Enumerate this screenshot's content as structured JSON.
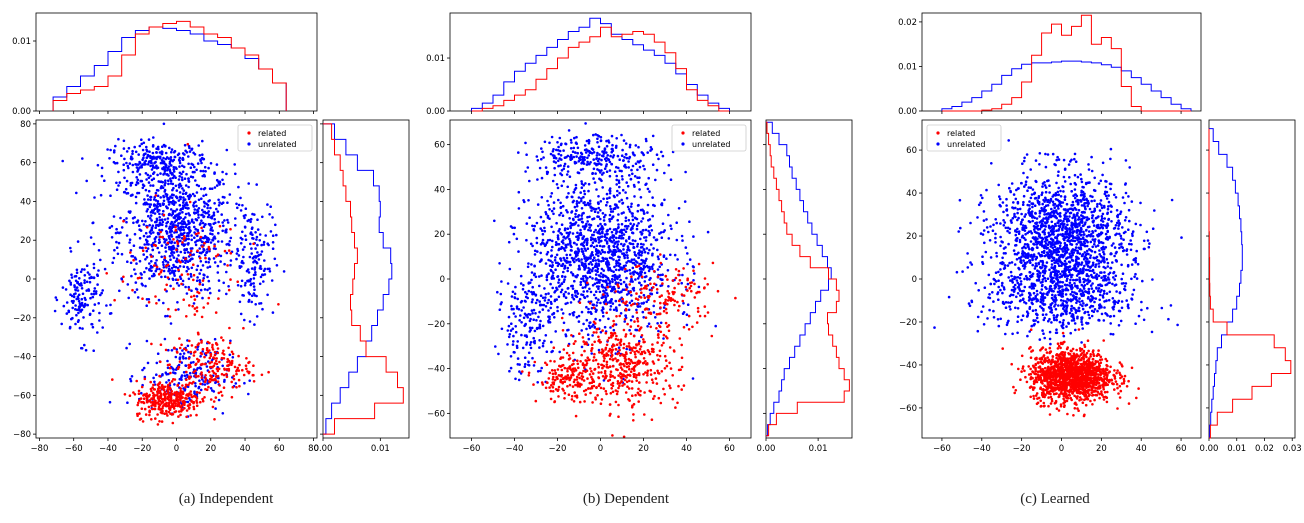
{
  "colors": {
    "related": "#ff0000",
    "unrelated": "#0000ff",
    "axis": "#000000"
  },
  "legend_labels": {
    "related": "related",
    "unrelated": "unrelated"
  },
  "captions": [
    "(a)  Independent",
    "(b)  Dependent",
    "(c)  Learned"
  ],
  "chart_data": [
    {
      "type": "scatter",
      "title": "",
      "caption": "(a)  Independent",
      "legend": "top-right",
      "main": {
        "xlim": [
          -82,
          82
        ],
        "ylim": [
          -82,
          82
        ],
        "xticks": [
          -80,
          -60,
          -40,
          -20,
          0,
          20,
          40,
          60,
          80
        ],
        "yticks": [
          -80,
          -60,
          -40,
          -20,
          0,
          20,
          40,
          60,
          80
        ],
        "tick_labels_x": [
          "−80",
          "−60",
          "−40",
          "−20",
          "0",
          "20",
          "40",
          "60",
          "80"
        ],
        "tick_labels_y": [
          "−80",
          "−60",
          "−40",
          "−20",
          "0",
          "20",
          "40",
          "60",
          "80"
        ],
        "series": [
          {
            "name": "related",
            "clusters": [
              {
                "cx": -5,
                "cy": -62,
                "sx": 16,
                "sy": 8,
                "n": 320
              },
              {
                "cx": 20,
                "cy": -45,
                "sx": 20,
                "sy": 12,
                "n": 200
              },
              {
                "cx": 0,
                "cy": 5,
                "sx": 30,
                "sy": 30,
                "n": 120
              }
            ]
          },
          {
            "name": "unrelated",
            "clusters": [
              {
                "cx": 0,
                "cy": 25,
                "sx": 28,
                "sy": 28,
                "n": 900
              },
              {
                "cx": -10,
                "cy": 60,
                "sx": 25,
                "sy": 9,
                "n": 250
              },
              {
                "cx": -55,
                "cy": -10,
                "sx": 10,
                "sy": 18,
                "n": 150
              },
              {
                "cx": 45,
                "cy": 10,
                "sx": 10,
                "sy": 25,
                "n": 150
              },
              {
                "cx": 5,
                "cy": -50,
                "sx": 22,
                "sy": 15,
                "n": 200
              }
            ]
          }
        ]
      },
      "top_hist": {
        "ylim": [
          0,
          0.014
        ],
        "yticks": [
          0,
          0.01
        ],
        "tick_labels_y": [
          "0.00",
          "0.01"
        ],
        "x_edges": [
          -72,
          -64,
          -56,
          -48,
          -40,
          -32,
          -24,
          -16,
          -8,
          0,
          8,
          16,
          24,
          32,
          40,
          48,
          56,
          64
        ],
        "related": [
          0.0015,
          0.0025,
          0.003,
          0.0035,
          0.005,
          0.008,
          0.011,
          0.012,
          0.0125,
          0.0128,
          0.012,
          0.011,
          0.0105,
          0.009,
          0.008,
          0.006,
          0.004
        ],
        "unrelated": [
          0.002,
          0.0035,
          0.005,
          0.0065,
          0.0085,
          0.0105,
          0.0115,
          0.012,
          0.0118,
          0.0115,
          0.011,
          0.01,
          0.0095,
          0.009,
          0.0075,
          0.006,
          0.004
        ]
      },
      "right_hist": {
        "xlim": [
          0,
          0.015
        ],
        "xticks": [
          0,
          0.01
        ],
        "tick_labels_x": [
          "0.00",
          "0.01"
        ],
        "y_edges": [
          -80,
          -72,
          -64,
          -56,
          -48,
          -40,
          -32,
          -24,
          -16,
          -8,
          0,
          8,
          16,
          24,
          32,
          40,
          48,
          56,
          64,
          72,
          80
        ],
        "related": [
          0.002,
          0.009,
          0.014,
          0.013,
          0.011,
          0.0075,
          0.0065,
          0.005,
          0.0048,
          0.0052,
          0.0055,
          0.006,
          0.0055,
          0.005,
          0.0048,
          0.004,
          0.0035,
          0.003,
          0.002,
          0.0015
        ],
        "unrelated": [
          0.0005,
          0.0015,
          0.003,
          0.0045,
          0.006,
          0.0075,
          0.0085,
          0.0095,
          0.0105,
          0.0115,
          0.012,
          0.0118,
          0.0105,
          0.0098,
          0.01,
          0.0098,
          0.0088,
          0.006,
          0.004,
          0.002
        ]
      }
    },
    {
      "type": "scatter",
      "title": "",
      "caption": "(b)  Dependent",
      "legend": "top-right",
      "main": {
        "xlim": [
          -70,
          70
        ],
        "ylim": [
          -71,
          71
        ],
        "xticks": [
          -60,
          -40,
          -20,
          0,
          20,
          40,
          60
        ],
        "yticks": [
          -60,
          -40,
          -20,
          0,
          20,
          40,
          60
        ],
        "tick_labels_x": [
          "−60",
          "−40",
          "−20",
          "0",
          "20",
          "40",
          "60"
        ],
        "tick_labels_y": [
          "−60",
          "−40",
          "−20",
          "0",
          "20",
          "40",
          "60"
        ],
        "series": [
          {
            "name": "related",
            "clusters": [
              {
                "cx": 10,
                "cy": -38,
                "sx": 22,
                "sy": 16,
                "n": 450
              },
              {
                "cx": 30,
                "cy": -8,
                "sx": 20,
                "sy": 12,
                "n": 150
              },
              {
                "cx": -15,
                "cy": -45,
                "sx": 12,
                "sy": 8,
                "n": 150
              }
            ]
          },
          {
            "name": "unrelated",
            "clusters": [
              {
                "cx": 0,
                "cy": 10,
                "sx": 28,
                "sy": 30,
                "n": 1400
              },
              {
                "cx": -2,
                "cy": 55,
                "sx": 25,
                "sy": 8,
                "n": 250
              },
              {
                "cx": -35,
                "cy": -20,
                "sx": 10,
                "sy": 20,
                "n": 150
              }
            ]
          }
        ]
      },
      "top_hist": {
        "ylim": [
          0,
          0.0185
        ],
        "yticks": [
          0,
          0.01
        ],
        "tick_labels_y": [
          "0.00",
          "0.01"
        ],
        "x_edges": [
          -60,
          -55,
          -50,
          -45,
          -40,
          -35,
          -30,
          -25,
          -20,
          -15,
          -10,
          -5,
          0,
          5,
          10,
          15,
          20,
          25,
          30,
          35,
          40,
          45,
          50,
          55,
          60
        ],
        "related": [
          0.0,
          0.0005,
          0.001,
          0.002,
          0.003,
          0.004,
          0.006,
          0.008,
          0.01,
          0.012,
          0.013,
          0.014,
          0.0158,
          0.014,
          0.0145,
          0.015,
          0.0145,
          0.013,
          0.011,
          0.008,
          0.004,
          0.002,
          0.001,
          0.0
        ],
        "unrelated": [
          0.0005,
          0.0015,
          0.003,
          0.0055,
          0.0075,
          0.009,
          0.0105,
          0.012,
          0.0135,
          0.015,
          0.0158,
          0.0175,
          0.0165,
          0.0145,
          0.0135,
          0.0125,
          0.0115,
          0.0105,
          0.009,
          0.007,
          0.005,
          0.003,
          0.0015,
          0.0005
        ]
      },
      "right_hist": {
        "xlim": [
          0,
          0.0165
        ],
        "xticks": [
          0,
          0.01
        ],
        "tick_labels_x": [
          "0.00",
          "0.01"
        ],
        "y_edges": [
          -70,
          -65,
          -60,
          -55,
          -50,
          -45,
          -40,
          -35,
          -30,
          -25,
          -20,
          -15,
          -10,
          -5,
          0,
          5,
          10,
          15,
          20,
          25,
          30,
          35,
          40,
          45,
          50,
          55,
          60,
          65,
          70
        ],
        "related": [
          0.0005,
          0.002,
          0.006,
          0.015,
          0.016,
          0.015,
          0.014,
          0.0135,
          0.0128,
          0.012,
          0.0118,
          0.0135,
          0.014,
          0.0135,
          0.012,
          0.0085,
          0.0065,
          0.005,
          0.004,
          0.0035,
          0.003,
          0.0025,
          0.002,
          0.0015,
          0.001,
          0.0008,
          0.0005,
          0.0002
        ],
        "unrelated": [
          0.0003,
          0.0008,
          0.0015,
          0.0025,
          0.003,
          0.0035,
          0.0045,
          0.0055,
          0.0065,
          0.0075,
          0.0085,
          0.0095,
          0.0105,
          0.012,
          0.0125,
          0.0118,
          0.0108,
          0.0098,
          0.0088,
          0.008,
          0.0072,
          0.0065,
          0.0058,
          0.005,
          0.0045,
          0.004,
          0.0025,
          0.0012
        ]
      }
    },
    {
      "type": "scatter",
      "title": "",
      "caption": "(c)  Learned",
      "legend": "top-left",
      "main": {
        "xlim": [
          -70,
          70
        ],
        "ylim": [
          -74,
          74
        ],
        "xticks": [
          -60,
          -40,
          -20,
          0,
          20,
          40,
          60
        ],
        "yticks": [
          -60,
          -40,
          -20,
          0,
          20,
          40,
          60
        ],
        "tick_labels_x": [
          "−60",
          "−40",
          "−20",
          "0",
          "20",
          "40",
          "60"
        ],
        "tick_labels_y": [
          "−60",
          "−40",
          "−20",
          "0",
          "20",
          "40",
          "60"
        ],
        "series": [
          {
            "name": "related",
            "clusters": [
              {
                "cx": 5,
                "cy": -45,
                "sx": 17,
                "sy": 10,
                "n": 1400
              }
            ]
          },
          {
            "name": "unrelated",
            "clusters": [
              {
                "cx": 0,
                "cy": 18,
                "sx": 28,
                "sy": 26,
                "n": 1600
              },
              {
                "cx": 0,
                "cy": -10,
                "sx": 32,
                "sy": 14,
                "n": 450
              }
            ]
          }
        ]
      },
      "top_hist": {
        "ylim": [
          0,
          0.022
        ],
        "yticks": [
          0,
          0.01,
          0.02
        ],
        "tick_labels_y": [
          "0.00",
          "0.01",
          "0.02"
        ],
        "x_edges": [
          -60,
          -55,
          -50,
          -45,
          -40,
          -35,
          -30,
          -25,
          -20,
          -15,
          -10,
          -5,
          0,
          5,
          10,
          15,
          20,
          25,
          30,
          35,
          40,
          45,
          50,
          55,
          60,
          65
        ],
        "related": [
          0.0,
          0.0,
          0.0,
          0.0,
          0.0002,
          0.0005,
          0.0015,
          0.003,
          0.0065,
          0.0125,
          0.0175,
          0.0195,
          0.017,
          0.019,
          0.0215,
          0.015,
          0.0165,
          0.014,
          0.0055,
          0.001,
          0.0,
          0.0,
          0.0,
          0.0,
          0.0
        ],
        "unrelated": [
          0.0005,
          0.001,
          0.002,
          0.003,
          0.0045,
          0.006,
          0.008,
          0.0095,
          0.0105,
          0.0108,
          0.0108,
          0.011,
          0.0112,
          0.0112,
          0.011,
          0.0108,
          0.0104,
          0.0098,
          0.009,
          0.0075,
          0.006,
          0.0045,
          0.003,
          0.0015,
          0.0005
        ]
      },
      "right_hist": {
        "xlim": [
          0,
          0.031
        ],
        "xticks": [
          0,
          0.01,
          0.02,
          0.03
        ],
        "tick_labels_x": [
          "0.00",
          "0.01",
          "0.02",
          "0.03"
        ],
        "y_edges": [
          -74,
          -68,
          -62,
          -56,
          -50,
          -44,
          -38,
          -32,
          -26,
          -20,
          -14,
          -8,
          -2,
          4,
          10,
          16,
          22,
          28,
          34,
          40,
          46,
          52,
          58,
          64,
          70
        ],
        "related": [
          0.0005,
          0.003,
          0.0085,
          0.0155,
          0.0225,
          0.0295,
          0.0275,
          0.0235,
          0.0065,
          0.0015,
          0.0005,
          0.0003,
          0.0002,
          0.0002,
          0.0001,
          0.0001,
          0.0,
          0.0,
          0.0,
          0.0,
          0.0,
          0.0,
          0.0,
          0.0
        ],
        "unrelated": [
          0.0002,
          0.0006,
          0.001,
          0.0015,
          0.002,
          0.0025,
          0.003,
          0.0045,
          0.0065,
          0.0085,
          0.01,
          0.011,
          0.0115,
          0.012,
          0.012,
          0.0118,
          0.0115,
          0.011,
          0.0105,
          0.0095,
          0.0085,
          0.0065,
          0.0035,
          0.0015
        ]
      }
    }
  ]
}
